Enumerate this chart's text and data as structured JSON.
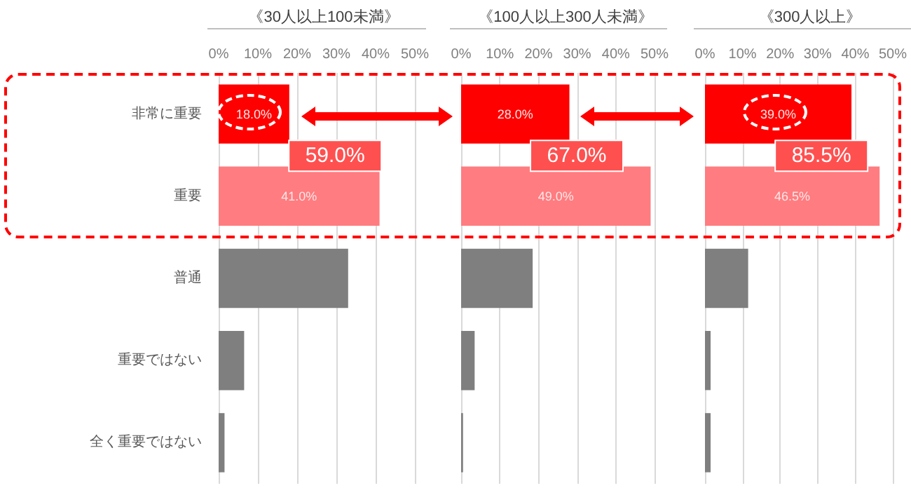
{
  "chart_data": [
    {
      "type": "bar",
      "orientation": "horizontal",
      "title": "《30人以上100未満》",
      "categories": [
        "非常に重要",
        "重要",
        "普通",
        "重要ではない",
        "全く重要ではない"
      ],
      "values": [
        18.0,
        41.0,
        33,
        6.5,
        1.5
      ],
      "colors": [
        "#ff0000",
        "#ff7c80",
        "#7f7f7f",
        "#7f7f7f",
        "#7f7f7f"
      ],
      "value_labels": [
        "18.0%",
        "41.0%",
        null,
        null,
        null
      ],
      "annotations": [
        "59.0%"
      ],
      "xlim": [
        0,
        50
      ],
      "xticks": [
        {
          "value": 0,
          "label": "0%"
        },
        {
          "value": 10,
          "label": "10%"
        },
        {
          "value": 20,
          "label": "20%"
        },
        {
          "value": 30,
          "label": "30%"
        },
        {
          "value": 40,
          "label": "40%"
        },
        {
          "value": 50,
          "label": "50%"
        }
      ],
      "grid": "x"
    },
    {
      "type": "bar",
      "orientation": "horizontal",
      "title": "《100人以上300人未満》",
      "categories": [
        "非常に重要",
        "重要",
        "普通",
        "重要ではない",
        "全く重要ではない"
      ],
      "values": [
        28.0,
        49.0,
        18.5,
        3.5,
        0.5
      ],
      "colors": [
        "#ff0000",
        "#ff7c80",
        "#7f7f7f",
        "#7f7f7f",
        "#7f7f7f"
      ],
      "value_labels": [
        "28.0%",
        "49.0%",
        null,
        null,
        null
      ],
      "annotations": [
        "67.0%"
      ],
      "xlim": [
        0,
        50
      ],
      "xticks": [
        {
          "value": 0,
          "label": "0%"
        },
        {
          "value": 10,
          "label": "10%"
        },
        {
          "value": 20,
          "label": "20%"
        },
        {
          "value": 30,
          "label": "30%"
        },
        {
          "value": 40,
          "label": "40%"
        },
        {
          "value": 50,
          "label": "50%"
        }
      ],
      "grid": "x",
      "tick_labels": "x"
    },
    {
      "type": "bar",
      "orientation": "horizontal",
      "title": "《300人以上》",
      "categories": [
        "非常に重要",
        "重要",
        "普通",
        "重要ではない",
        "全く重要ではない"
      ],
      "values": [
        39.0,
        46.5,
        11.5,
        1.5,
        1.5
      ],
      "colors": [
        "#ff0000",
        "#ff7c80",
        "#7f7f7f",
        "#7f7f7f",
        "#7f7f7f"
      ],
      "value_labels": [
        "39.0%",
        "46.5%",
        null,
        null,
        null
      ],
      "annotations": [
        "85.5%"
      ],
      "xlim": [
        0,
        50
      ],
      "xticks": [
        {
          "value": 0,
          "label": "0%"
        },
        {
          "value": 10,
          "label": "10%"
        },
        {
          "value": 20,
          "label": "20%"
        },
        {
          "value": 30,
          "label": "30%"
        },
        {
          "value": 40,
          "label": "40%"
        },
        {
          "value": 50,
          "label": "50%"
        }
      ],
      "grid": "x",
      "tick_labels": "x"
    }
  ]
}
